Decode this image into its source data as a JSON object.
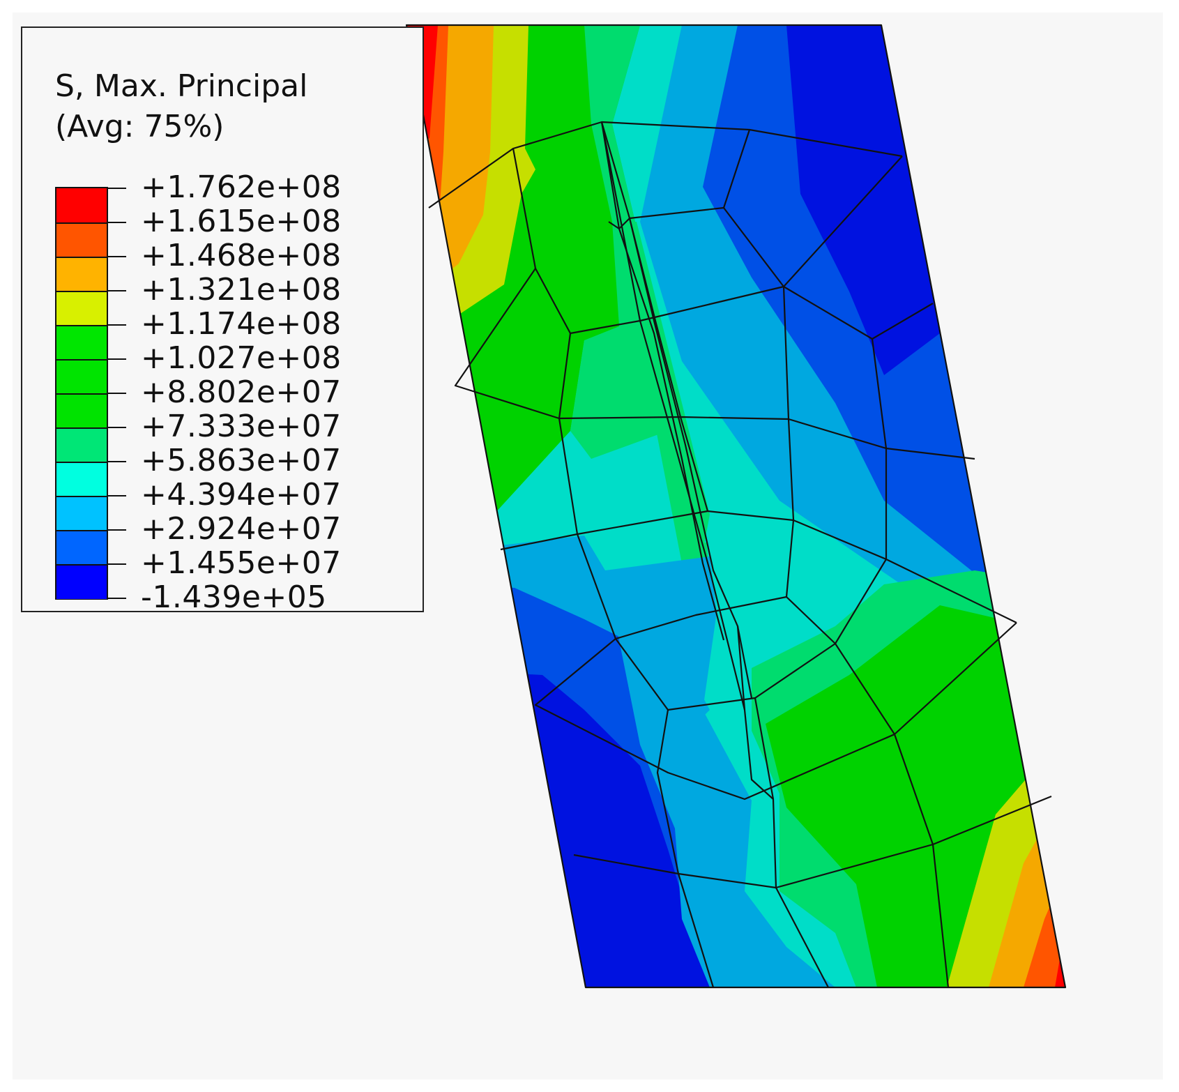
{
  "legend": {
    "title_line1": "S, Max. Principal",
    "title_line2": "(Avg: 75%)",
    "levels": [
      {
        "label": "+1.762e+08",
        "color": "#ff0000"
      },
      {
        "label": "+1.615e+08",
        "color": "#ff5500"
      },
      {
        "label": "+1.468e+08",
        "color": "#ffb300"
      },
      {
        "label": "+1.321e+08",
        "color": "#d8f000"
      },
      {
        "label": "+1.174e+08",
        "color": "#00e600"
      },
      {
        "label": "+1.027e+08",
        "color": "#00e400"
      },
      {
        "label": "+8.802e+07",
        "color": "#00e300"
      },
      {
        "label": "+7.333e+07",
        "color": "#00e676"
      },
      {
        "label": "+5.863e+07",
        "color": "#00ffe0"
      },
      {
        "label": "+4.394e+07",
        "color": "#00c2ff"
      },
      {
        "label": "+2.924e+07",
        "color": "#0066ff"
      },
      {
        "label": "+1.455e+07",
        "color": "#0000ff"
      },
      {
        "label": "-1.439e+05",
        "color": "#0000ff"
      }
    ]
  },
  "colors": {
    "red": "#ff0000",
    "red_orange": "#ff5500",
    "orange": "#f5a800",
    "yellow_green": "#c6df00",
    "green": "#00d200",
    "spring_green": "#00dc6e",
    "cyan": "#00ddc8",
    "light_blue": "#00a8e0",
    "blue": "#0050e6",
    "deep_blue": "#0012e0",
    "mesh_line": "#111111"
  }
}
